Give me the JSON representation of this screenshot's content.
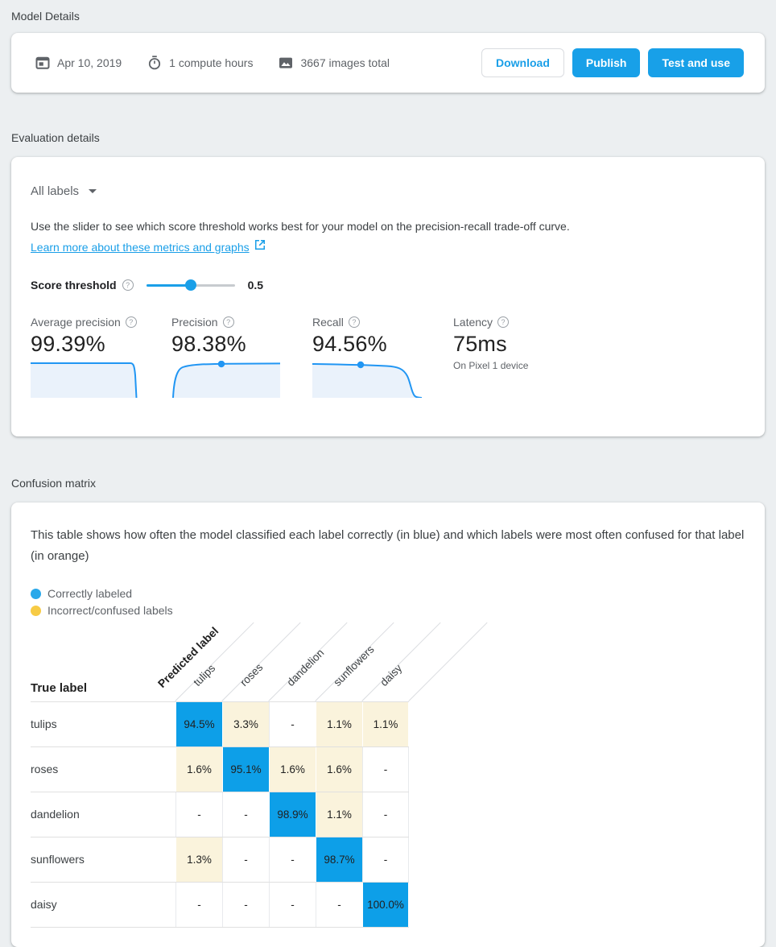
{
  "colors": {
    "accent": "#1a9fe8",
    "cell_blue": "#0d9fe8",
    "cell_cream": "#faf3dc",
    "legend_blue": "#29a8ea",
    "legend_yellow": "#f7cb45"
  },
  "model_details": {
    "section_title": "Model Details",
    "created_date": "Apr 10, 2019",
    "compute_hours": "1 compute hours",
    "images_total": "3667 images total",
    "buttons": {
      "download": "Download",
      "publish": "Publish",
      "test_and_use": "Test and use"
    }
  },
  "evaluation": {
    "section_title": "Evaluation details",
    "labels_filter": "All labels",
    "description": "Use the slider to see which score threshold works best for your model on the precision-recall trade-off curve.",
    "learn_more_link": "Learn more about these metrics and graphs",
    "score_threshold": {
      "label": "Score threshold",
      "value": "0.5",
      "percent": 50
    },
    "metrics": {
      "0": {
        "label": "Average precision",
        "value": "99.39%"
      },
      "1": {
        "label": "Precision",
        "value": "98.38%"
      },
      "2": {
        "label": "Recall",
        "value": "94.56%"
      },
      "3": {
        "label": "Latency",
        "value": "75ms",
        "note": "On Pixel 1 device"
      }
    }
  },
  "confusion_matrix": {
    "section_title": "Confusion matrix",
    "description": "This table shows how often the model classified each label correctly (in blue) and which labels were most often confused for that label (in orange)",
    "legend": [
      {
        "label": "Correctly labeled",
        "color": "#29a8ea"
      },
      {
        "label": "Incorrect/confused labels",
        "color": "#f7cb45"
      }
    ],
    "predicted_label_header": "Predicted label",
    "true_label_header": "True label",
    "columns": [
      "tulips",
      "roses",
      "dandelion",
      "sunflowers",
      "daisy"
    ],
    "rows": [
      {
        "label": "tulips",
        "values": [
          "94.5%",
          "3.3%",
          "-",
          "1.1%",
          "1.1%"
        ]
      },
      {
        "label": "roses",
        "values": [
          "1.6%",
          "95.1%",
          "1.6%",
          "1.6%",
          "-"
        ]
      },
      {
        "label": "dandelion",
        "values": [
          "-",
          "-",
          "98.9%",
          "1.1%",
          "-"
        ]
      },
      {
        "label": "sunflowers",
        "values": [
          "1.3%",
          "-",
          "-",
          "98.7%",
          "-"
        ]
      },
      {
        "label": "daisy",
        "values": [
          "-",
          "-",
          "-",
          "-",
          "100.0%"
        ]
      }
    ]
  }
}
